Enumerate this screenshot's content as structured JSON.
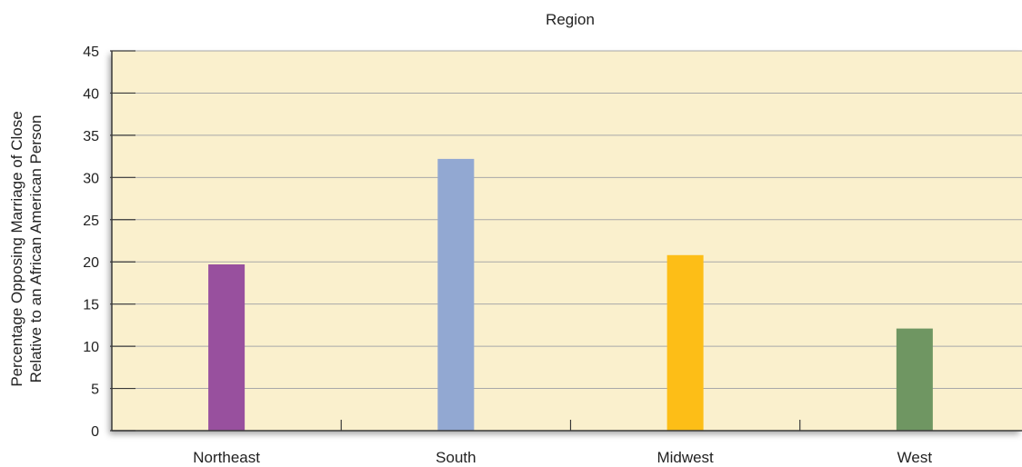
{
  "chart_data": {
    "type": "bar",
    "title": "Region",
    "xlabel": "",
    "ylabel_lines": [
      "Percentage Opposing Marriage of Close",
      "Relative to an African American Person"
    ],
    "categories": [
      "Northeast",
      "South",
      "Midwest",
      "West"
    ],
    "values": [
      19.7,
      32.2,
      20.8,
      12.1
    ],
    "bar_colors": [
      "#98509e",
      "#92a8d2",
      "#fdbe17",
      "#6f9662"
    ],
    "ylim": [
      0,
      45
    ],
    "yticks": [
      0,
      5,
      10,
      15,
      20,
      25,
      30,
      35,
      40,
      45
    ],
    "grid": true,
    "legend": "none",
    "plot_background": "#faf0cd",
    "gridline_color": "#a8a8a8",
    "axis_color": "#3a3a3a"
  }
}
